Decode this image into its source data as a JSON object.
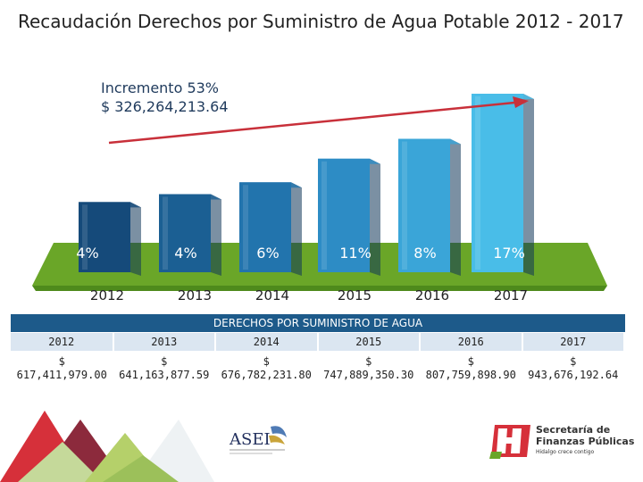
{
  "title": "Recaudación Derechos por Suministro de Agua Potable 2012 - 2017",
  "increment": {
    "label": "Incremento 53%",
    "amount": "$ 326,264,213.64"
  },
  "chart_data": {
    "type": "bar",
    "categories": [
      "2012",
      "2013",
      "2014",
      "2015",
      "2016",
      "2017"
    ],
    "values": [
      617411979.0,
      641163877.59,
      676782231.8,
      747889350.3,
      807759898.9,
      943676192.64
    ],
    "growth_labels": [
      "4%",
      "4%",
      "6%",
      "11%",
      "8%",
      "17%"
    ],
    "bar_colors": [
      "#154a7a",
      "#1b5f93",
      "#2274ad",
      "#2d8cc5",
      "#3aa5d8",
      "#49bde8"
    ],
    "floor_color": "#6aa628",
    "arrow_color": "#c8303a"
  },
  "table": {
    "header": "DERECHOS POR SUMINISTRO DE AGUA",
    "years": [
      "2012",
      "2013",
      "2014",
      "2015",
      "2016",
      "2017"
    ],
    "currency": "$",
    "values": [
      "617,411,979.00",
      "641,163,877.59",
      "676,782,231.80",
      "747,889,350.30",
      "807,759,898.90",
      "943,676,192.64"
    ]
  },
  "logos": {
    "asei": "ASEI",
    "sfp_line1": "Secretaría de",
    "sfp_line2": "Finanzas Públicas",
    "sfp_tagline": "Hidalgo crece contigo"
  }
}
